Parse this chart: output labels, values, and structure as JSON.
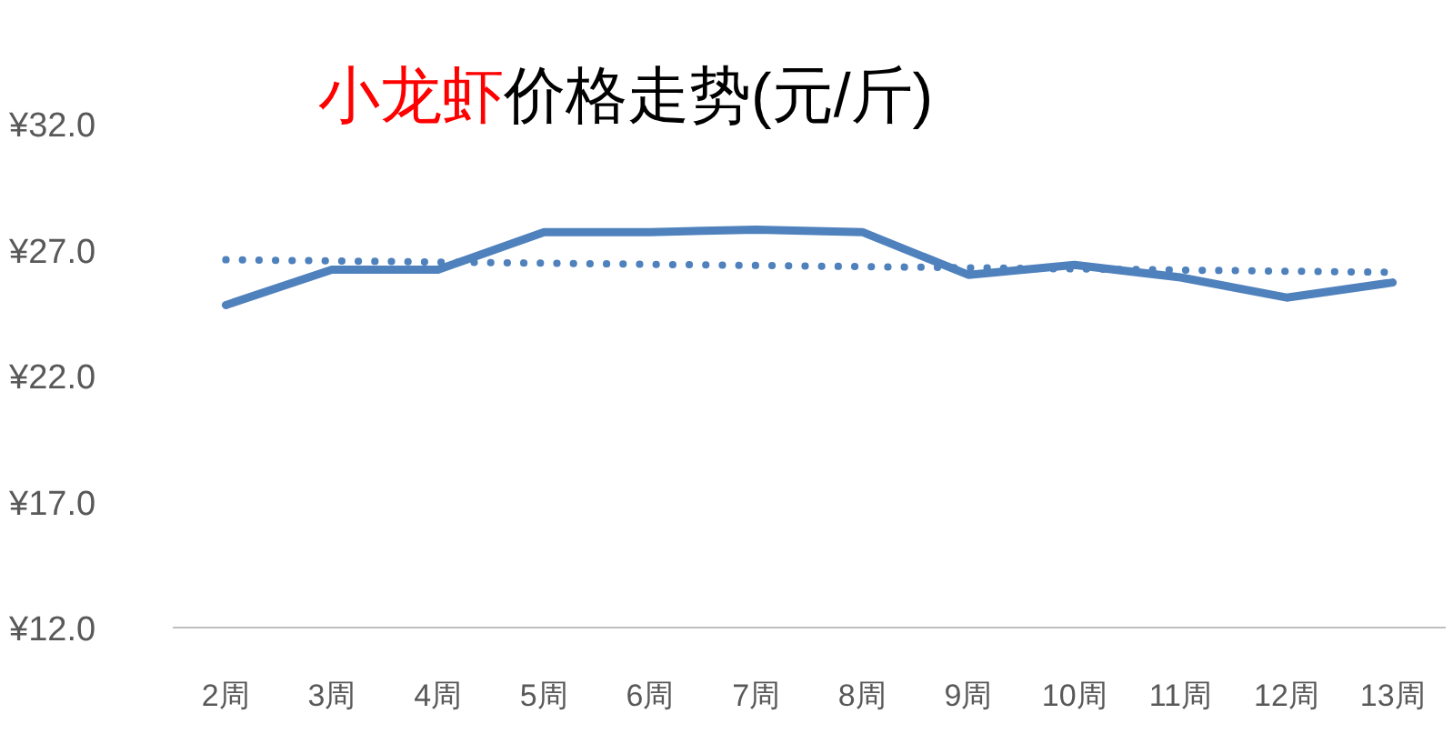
{
  "chart_data": {
    "type": "line",
    "title": "小龙虾",
    "subtitle": "价格走势(元/斤)",
    "categories": [
      "2周",
      "3周",
      "4周",
      "5周",
      "6周",
      "7周",
      "8周",
      "9周",
      "10周",
      "11周",
      "12周",
      "13周"
    ],
    "series": [
      {
        "color": "#4f81bd",
        "line_style": "solid",
        "values": [
          24.8,
          26.2,
          26.2,
          27.7,
          27.7,
          27.8,
          27.7,
          26.0,
          26.4,
          25.9,
          25.1,
          25.7
        ]
      },
      {
        "color": "#4f81bd",
        "line_style": "dotted",
        "x": [
          "2周",
          "13周"
        ],
        "values": [
          26.6,
          26.1
        ]
      }
    ],
    "ylim": [
      12,
      32
    ],
    "yticks": [
      {
        "value": 12,
        "label": "¥12.0"
      },
      {
        "value": 17,
        "label": "¥17.0"
      },
      {
        "value": 22,
        "label": "¥22.0"
      },
      {
        "value": 27,
        "label": "¥27.0"
      },
      {
        "value": 32,
        "label": "¥32.0"
      }
    ],
    "marker": "none"
  }
}
